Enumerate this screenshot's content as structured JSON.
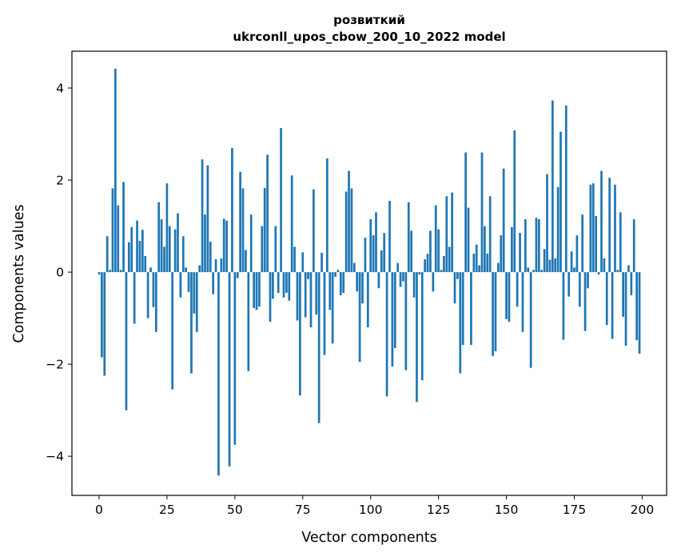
{
  "chart_data": {
    "type": "bar",
    "title_line1": "розвиткий",
    "title_line2": "ukrconll_upos_cbow_200_10_2022 model",
    "xlabel": "Vector components",
    "ylabel": "Components values",
    "xlim": [
      -10,
      209
    ],
    "ylim": [
      -4.85,
      4.8
    ],
    "xticks": [
      0,
      25,
      50,
      75,
      100,
      125,
      150,
      175,
      200
    ],
    "yticks": [
      -4,
      -2,
      0,
      2,
      4
    ],
    "ytick_labels": [
      "−4",
      "−2",
      "0",
      "2",
      "4"
    ],
    "bar_color": "#1f77b4",
    "grid": false,
    "values": [
      -0.05,
      -1.85,
      -2.25,
      0.78,
      0.05,
      1.82,
      4.42,
      1.45,
      0.05,
      1.96,
      -3.0,
      0.65,
      0.98,
      -1.12,
      1.12,
      0.68,
      0.92,
      0.35,
      -1.0,
      0.1,
      -0.76,
      -1.3,
      1.52,
      1.15,
      0.55,
      1.93,
      1.0,
      -2.55,
      0.93,
      1.28,
      -0.55,
      0.78,
      0.1,
      -0.43,
      -2.2,
      -0.9,
      -1.3,
      0.15,
      2.45,
      1.25,
      2.32,
      0.66,
      -0.48,
      0.28,
      -4.42,
      0.3,
      1.16,
      1.12,
      -4.22,
      2.7,
      -3.75,
      -0.13,
      2.18,
      1.82,
      0.48,
      -2.15,
      1.25,
      -0.78,
      -0.82,
      -0.75,
      1.0,
      1.83,
      2.55,
      -1.08,
      -0.58,
      1.0,
      -0.45,
      3.13,
      -0.55,
      -0.45,
      -0.62,
      2.1,
      0.55,
      -1.05,
      -2.68,
      0.43,
      -0.98,
      -0.15,
      -1.2,
      1.8,
      -0.92,
      -3.28,
      0.42,
      -1.8,
      2.47,
      -0.82,
      -1.55,
      -0.1,
      0.05,
      -0.5,
      -0.45,
      1.75,
      2.2,
      1.82,
      0.2,
      -0.42,
      -1.95,
      -0.68,
      0.75,
      -1.2,
      1.15,
      0.8,
      1.3,
      -0.35,
      0.47,
      0.85,
      -2.7,
      1.55,
      -2.05,
      -1.65,
      0.2,
      -0.32,
      -0.2,
      -2.13,
      1.52,
      0.9,
      -0.55,
      -2.82,
      -0.05,
      -2.35,
      0.28,
      0.4,
      0.9,
      -0.42,
      1.45,
      0.93,
      0.05,
      0.35,
      1.65,
      0.55,
      1.73,
      -0.68,
      -0.15,
      -2.2,
      -1.58,
      2.6,
      1.4,
      -1.58,
      0.4,
      0.6,
      0.15,
      2.6,
      1.0,
      0.4,
      1.65,
      -1.82,
      -1.72,
      0.2,
      0.8,
      2.25,
      -1.02,
      -1.08,
      0.98,
      3.08,
      -0.75,
      0.85,
      -1.3,
      1.15,
      0.1,
      -2.08,
      0.05,
      1.18,
      1.15,
      0.05,
      0.5,
      2.13,
      0.27,
      3.73,
      0.3,
      1.85,
      3.05,
      -1.47,
      3.62,
      -0.53,
      0.45,
      0.1,
      0.8,
      -0.75,
      1.25,
      -1.28,
      -0.35,
      1.9,
      1.93,
      1.22,
      -0.05,
      2.2,
      0.3,
      -1.15,
      2.05,
      -1.45,
      1.9,
      0.05,
      1.3,
      -0.97,
      -1.6,
      0.15,
      -0.5,
      1.15,
      -1.48,
      -1.77
    ]
  }
}
